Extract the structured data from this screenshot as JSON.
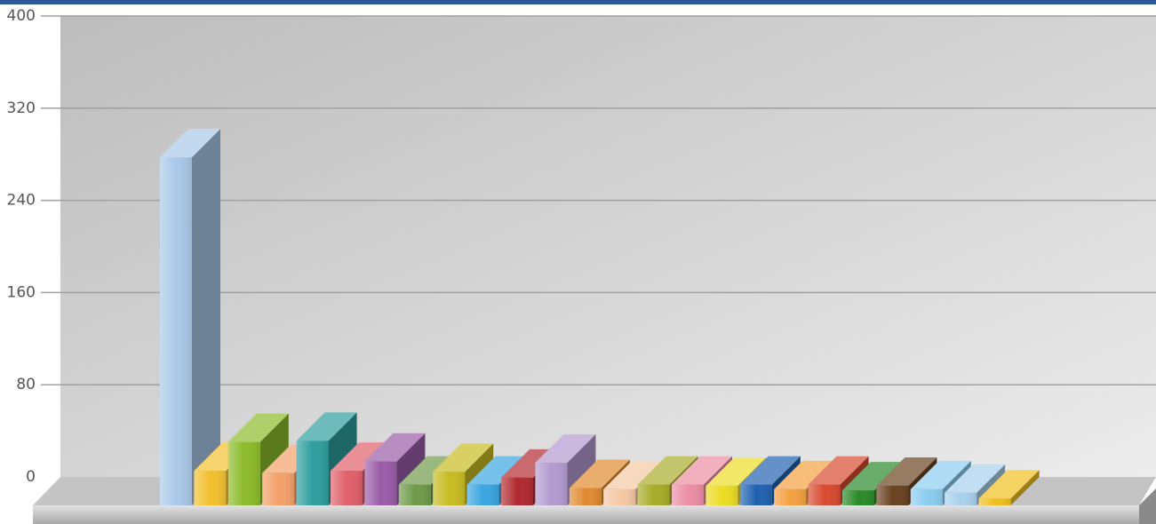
{
  "chart_data": {
    "type": "bar3d",
    "categories": [
      null,
      null,
      null,
      null,
      null,
      null,
      null,
      null,
      null,
      null,
      null,
      null,
      null,
      null,
      null,
      null,
      null,
      null,
      null,
      null,
      null,
      null,
      null,
      null,
      null
    ],
    "values": [
      302,
      30,
      55,
      28,
      56,
      30,
      38,
      18,
      29,
      18,
      24,
      37,
      15,
      14,
      18,
      18,
      17,
      18,
      14,
      18,
      13,
      17,
      14,
      11,
      6
    ],
    "colors": [
      "#a9c8e8",
      "#f2c02e",
      "#8bbb2a",
      "#f4a06a",
      "#2e9e9e",
      "#e0606a",
      "#9a5ca8",
      "#6e9a4a",
      "#c8bc22",
      "#3aa6e0",
      "#b02a30",
      "#b39ad0",
      "#e08a30",
      "#f4c8a4",
      "#a8ac28",
      "#ec8ea4",
      "#ecdc24",
      "#2062b0",
      "#f4a040",
      "#d84a30",
      "#2a8a2a",
      "#6a4220",
      "#8ccdf0",
      "#a8d0ec",
      "#f0c020"
    ],
    "ylim": [
      0,
      400
    ],
    "yticks": [
      0,
      80,
      160,
      240,
      320,
      400
    ],
    "grid": true
  }
}
